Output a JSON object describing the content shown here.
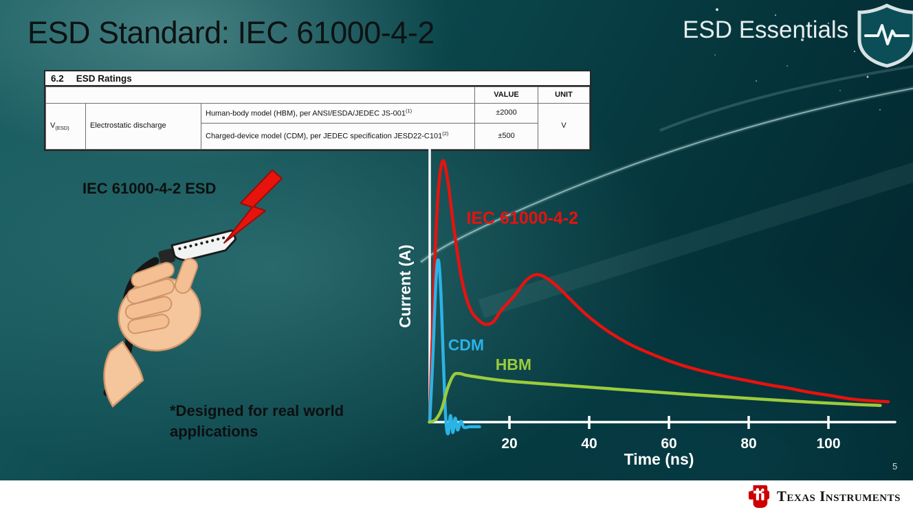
{
  "slide": {
    "title": "ESD Standard: IEC 61000-4-2",
    "brand": "ESD Essentials",
    "page_number": "5",
    "footer_brand": "Texas Instruments"
  },
  "colors": {
    "iec_red": "#e8120e",
    "cdm_blue": "#2bb3e6",
    "hbm_green": "#9bcb3c",
    "background_teal": "#0d4b50",
    "table_bg": "#fcfcfc",
    "footer_bg": "#ffffff"
  },
  "icons": {
    "shield": "shield-with-pulse",
    "lightning": "red-lightning-bolt",
    "ti_logo": "ti-red-bug"
  },
  "ratings_table": {
    "section_number": "6.2",
    "section_title": "ESD Ratings",
    "col_value": "VALUE",
    "col_unit": "UNIT",
    "param_symbol": "V",
    "param_symbol_sub": "(ESD)",
    "param_name": "Electrostatic discharge",
    "rows": [
      {
        "description": "Human-body model (HBM), per ANSI/ESDA/JEDEC JS-001",
        "sup": "(1)",
        "value": "±2000"
      },
      {
        "description": "Charged-device model (CDM), per JEDEC specification JESD22-C101",
        "sup": "(2)",
        "value": "±500"
      }
    ],
    "unit": "V"
  },
  "left_labels": {
    "esd_label": "IEC 61000-4-2 ESD",
    "note_line1": "*Designed for real world",
    "note_line2": "applications"
  },
  "chart_data": {
    "type": "line",
    "title": "",
    "xlabel": "Time (ns)",
    "ylabel": "Current (A)",
    "x_ticks": [
      20,
      40,
      60,
      80,
      100
    ],
    "xlim": [
      0,
      115
    ],
    "ylim": [
      -0.06,
      1.05
    ],
    "y_ticks": [],
    "grid": false,
    "legend_position": "labels-on-curves",
    "note": "No y-axis tick labels shown; y values are relative current amplitudes (IEC peak normalized to 1.0)",
    "series": [
      {
        "name": "IEC 61000-4-2",
        "color": "#e8120e",
        "label": {
          "t": 9.2,
          "v": 0.76,
          "size": 25
        },
        "points": [
          [
            0,
            0
          ],
          [
            1,
            0.5
          ],
          [
            2,
            0.85
          ],
          [
            3.2,
            1.0
          ],
          [
            4.5,
            0.93
          ],
          [
            6,
            0.75
          ],
          [
            8,
            0.55
          ],
          [
            10,
            0.44
          ],
          [
            12,
            0.395
          ],
          [
            14,
            0.375
          ],
          [
            16,
            0.385
          ],
          [
            18,
            0.43
          ],
          [
            21,
            0.48
          ],
          [
            24,
            0.54
          ],
          [
            26.5,
            0.565
          ],
          [
            29,
            0.555
          ],
          [
            32,
            0.52
          ],
          [
            35,
            0.475
          ],
          [
            38,
            0.43
          ],
          [
            41,
            0.39
          ],
          [
            45,
            0.345
          ],
          [
            50,
            0.3
          ],
          [
            55,
            0.265
          ],
          [
            60,
            0.235
          ],
          [
            65,
            0.21
          ],
          [
            70,
            0.19
          ],
          [
            75,
            0.173
          ],
          [
            80,
            0.158
          ],
          [
            85,
            0.143
          ],
          [
            90,
            0.13
          ],
          [
            95,
            0.115
          ],
          [
            100,
            0.103
          ],
          [
            105,
            0.09
          ],
          [
            110,
            0.082
          ],
          [
            115,
            0.078
          ]
        ]
      },
      {
        "name": "CDM",
        "color": "#2bb3e6",
        "label": {
          "t": 4.6,
          "v": 0.275,
          "size": 23
        },
        "points": [
          [
            0,
            0
          ],
          [
            0.8,
            0.25
          ],
          [
            1.6,
            0.55
          ],
          [
            2.2,
            0.62
          ],
          [
            2.8,
            0.5
          ],
          [
            3.4,
            0.25
          ],
          [
            4,
            0.02
          ],
          [
            4.6,
            -0.045
          ],
          [
            5.2,
            0.025
          ],
          [
            5.8,
            -0.04
          ],
          [
            6.4,
            0.015
          ],
          [
            7,
            -0.03
          ],
          [
            7.8,
            0.003
          ],
          [
            8.6,
            -0.02
          ],
          [
            10,
            -0.018
          ],
          [
            12.5,
            -0.018
          ]
        ]
      },
      {
        "name": "HBM",
        "color": "#9bcb3c",
        "label": {
          "t": 16.5,
          "v": 0.2,
          "size": 23
        },
        "points": [
          [
            0,
            0
          ],
          [
            1.5,
            0.01
          ],
          [
            3,
            0.05
          ],
          [
            4.5,
            0.13
          ],
          [
            6,
            0.18
          ],
          [
            7.5,
            0.186
          ],
          [
            9,
            0.18
          ],
          [
            11,
            0.175
          ],
          [
            14,
            0.168
          ],
          [
            18,
            0.16
          ],
          [
            24,
            0.152
          ],
          [
            30,
            0.145
          ],
          [
            38,
            0.136
          ],
          [
            46,
            0.127
          ],
          [
            55,
            0.117
          ],
          [
            65,
            0.106
          ],
          [
            75,
            0.096
          ],
          [
            85,
            0.086
          ],
          [
            95,
            0.077
          ],
          [
            105,
            0.069
          ],
          [
            113,
            0.064
          ]
        ]
      }
    ]
  }
}
